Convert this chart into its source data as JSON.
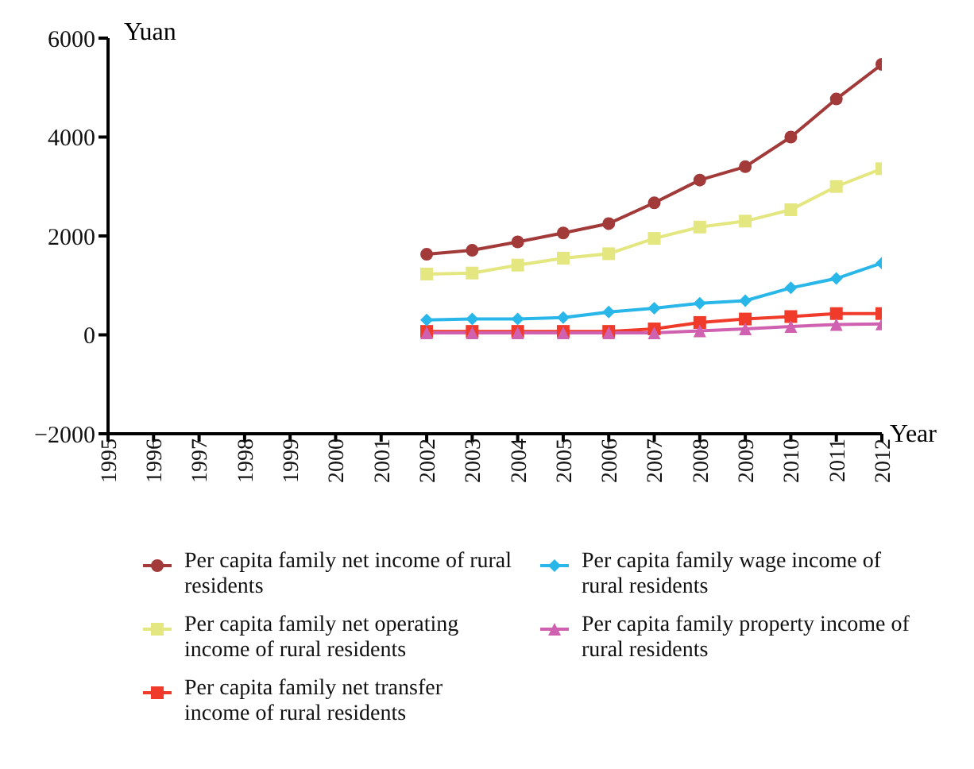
{
  "chart_data": {
    "type": "line",
    "xlabel": "Year",
    "ylabel": "Yuan",
    "x": [
      2002,
      2003,
      2004,
      2005,
      2006,
      2007,
      2008,
      2009,
      2010,
      2011,
      2012
    ],
    "xlim": [
      1995,
      2012
    ],
    "xticks": [
      1995,
      1996,
      1997,
      1998,
      1999,
      2000,
      2001,
      2002,
      2003,
      2004,
      2005,
      2006,
      2007,
      2008,
      2009,
      2010,
      2011,
      2012
    ],
    "ylim": [
      -2000,
      6000
    ],
    "yticks": [
      -2000,
      0,
      2000,
      4000,
      6000
    ],
    "legend": "bottom",
    "series": [
      {
        "name": "Per capita family net income of rural residents",
        "color": "#a33a3a",
        "marker": "circle",
        "values": [
          1630,
          1710,
          1880,
          2060,
          2250,
          2670,
          3130,
          3400,
          4000,
          4770,
          5470
        ]
      },
      {
        "name": "Per capita family wage income of rural residents",
        "color": "#29b6e8",
        "marker": "diamond",
        "values": [
          300,
          320,
          320,
          350,
          460,
          540,
          640,
          690,
          950,
          1140,
          1450
        ]
      },
      {
        "name": "Per capita family net operating income of rural residents",
        "color": "#e4e680",
        "marker": "square",
        "values": [
          1230,
          1250,
          1410,
          1550,
          1640,
          1950,
          2180,
          2300,
          2530,
          3000,
          3360
        ]
      },
      {
        "name": "Per capita family property income of rural residents",
        "color": "#d060b0",
        "marker": "triangle",
        "values": [
          40,
          40,
          40,
          40,
          40,
          40,
          80,
          120,
          170,
          210,
          220
        ]
      },
      {
        "name": "Per capita family net transfer income of rural residents",
        "color": "#f03a2a",
        "marker": "square",
        "values": [
          70,
          70,
          70,
          70,
          70,
          120,
          250,
          320,
          370,
          430,
          430
        ]
      }
    ]
  }
}
